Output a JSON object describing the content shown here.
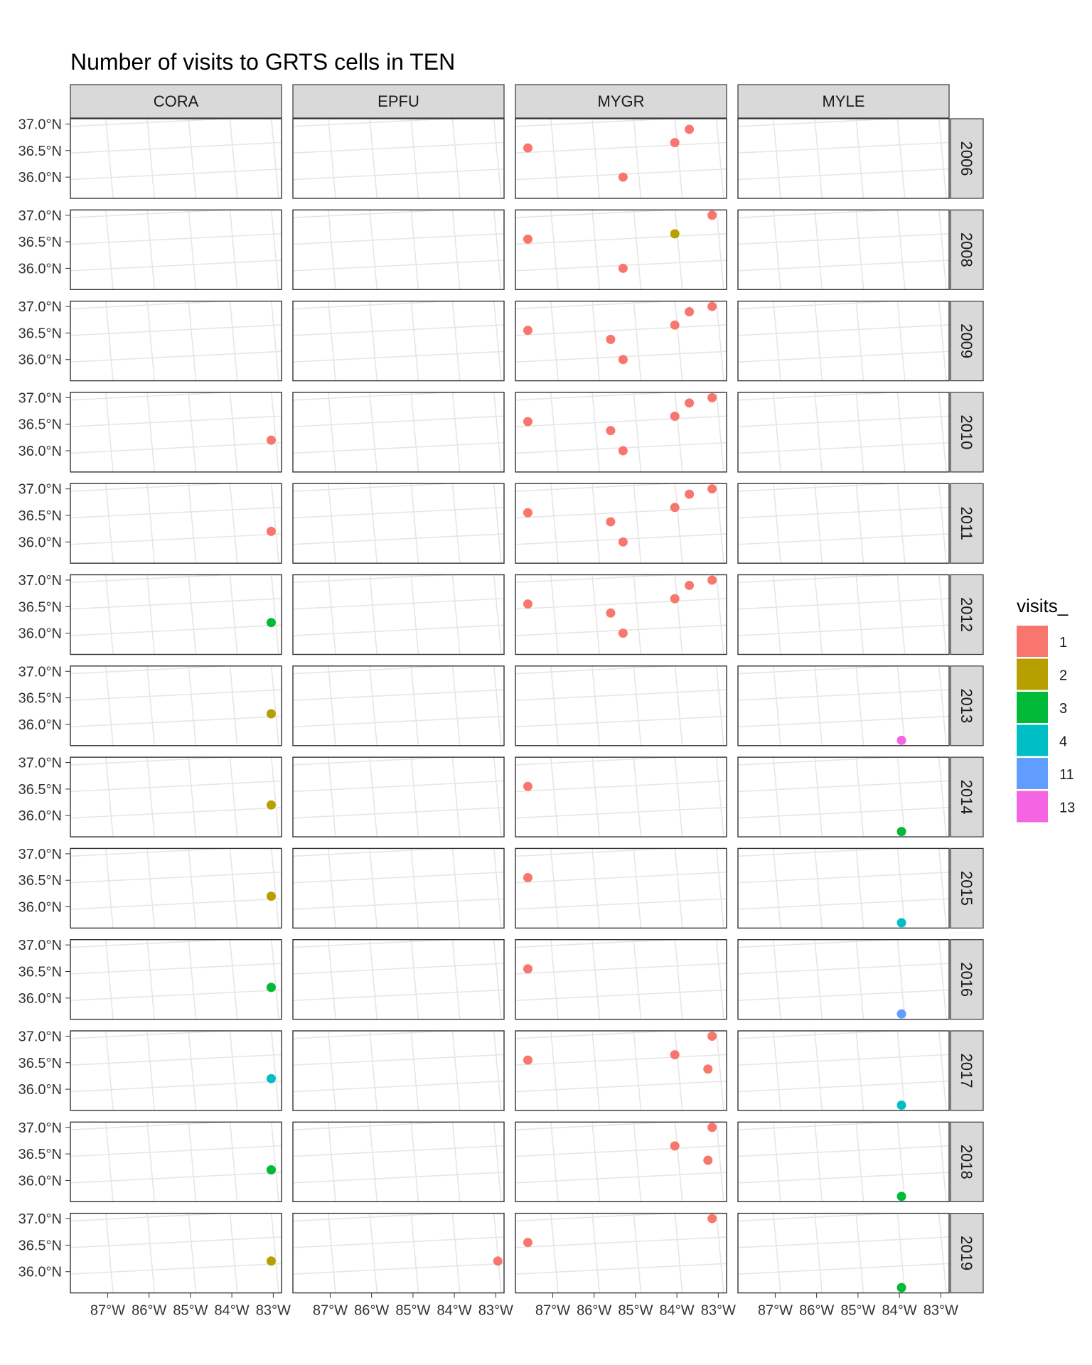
{
  "chart_data": {
    "type": "scatter",
    "subtype": "faceted map",
    "title": "Number of visits to GRTS cells in TEN",
    "facet_cols": [
      "CORA",
      "EPFU",
      "MYGR",
      "MYLE"
    ],
    "facet_rows": [
      "2006",
      "2008",
      "2009",
      "2010",
      "2011",
      "2012",
      "2013",
      "2014",
      "2015",
      "2016",
      "2017",
      "2018",
      "2019"
    ],
    "y_ticks": [
      "37.0°N",
      "36.5°N",
      "36.0°N"
    ],
    "x_ticks": [
      "87°W",
      "86°W",
      "85°W",
      "84°W",
      "83°W"
    ],
    "xlim": [
      -87.9,
      -82.8
    ],
    "ylim": [
      35.6,
      37.1
    ],
    "legend": {
      "title": "visits_",
      "position": "right",
      "items": [
        {
          "label": "1",
          "color": "#F8766D"
        },
        {
          "label": "2",
          "color": "#B79F00"
        },
        {
          "label": "3",
          "color": "#00BA38"
        },
        {
          "label": "4",
          "color": "#00BFC4"
        },
        {
          "label": "11",
          "color": "#619CFF"
        },
        {
          "label": "13",
          "color": "#F564E3"
        }
      ]
    },
    "points": {
      "CORA": {
        "2010": [
          [
            -83.05,
            36.2,
            1
          ]
        ],
        "2011": [
          [
            -83.05,
            36.2,
            1
          ]
        ],
        "2012": [
          [
            -83.05,
            36.2,
            3
          ]
        ],
        "2013": [
          [
            -83.05,
            36.2,
            2
          ]
        ],
        "2014": [
          [
            -83.05,
            36.2,
            2
          ]
        ],
        "2015": [
          [
            -83.05,
            36.2,
            2
          ]
        ],
        "2016": [
          [
            -83.05,
            36.2,
            3
          ]
        ],
        "2017": [
          [
            -83.05,
            36.2,
            4
          ]
        ],
        "2018": [
          [
            -83.05,
            36.2,
            3
          ]
        ],
        "2019": [
          [
            -83.05,
            36.2,
            2
          ]
        ]
      },
      "EPFU": {
        "2019": [
          [
            -82.95,
            36.2,
            1
          ]
        ]
      },
      "MYGR": {
        "2006": [
          [
            -87.6,
            36.55,
            1
          ],
          [
            -84.05,
            36.65,
            1
          ],
          [
            -83.7,
            36.9,
            1
          ],
          [
            -85.3,
            36.0,
            1
          ]
        ],
        "2008": [
          [
            -87.6,
            36.55,
            1
          ],
          [
            -84.05,
            36.65,
            2
          ],
          [
            -83.15,
            37.0,
            1
          ],
          [
            -85.3,
            36.0,
            1
          ]
        ],
        "2009": [
          [
            -87.6,
            36.55,
            1
          ],
          [
            -85.6,
            36.38,
            1
          ],
          [
            -85.3,
            36.0,
            1
          ],
          [
            -84.05,
            36.65,
            1
          ],
          [
            -83.7,
            36.9,
            1
          ],
          [
            -83.15,
            37.0,
            1
          ]
        ],
        "2010": [
          [
            -87.6,
            36.55,
            1
          ],
          [
            -85.6,
            36.38,
            1
          ],
          [
            -85.3,
            36.0,
            1
          ],
          [
            -84.05,
            36.65,
            1
          ],
          [
            -83.7,
            36.9,
            1
          ],
          [
            -83.15,
            37.0,
            1
          ]
        ],
        "2011": [
          [
            -87.6,
            36.55,
            1
          ],
          [
            -85.6,
            36.38,
            1
          ],
          [
            -85.3,
            36.0,
            1
          ],
          [
            -84.05,
            36.65,
            1
          ],
          [
            -83.7,
            36.9,
            1
          ],
          [
            -83.15,
            37.0,
            1
          ]
        ],
        "2012": [
          [
            -87.6,
            36.55,
            1
          ],
          [
            -85.6,
            36.38,
            1
          ],
          [
            -85.3,
            36.0,
            1
          ],
          [
            -84.05,
            36.65,
            1
          ],
          [
            -83.7,
            36.9,
            1
          ],
          [
            -83.15,
            37.0,
            1
          ]
        ],
        "2014": [
          [
            -87.6,
            36.55,
            1
          ]
        ],
        "2015": [
          [
            -87.6,
            36.55,
            1
          ]
        ],
        "2016": [
          [
            -87.6,
            36.55,
            1
          ]
        ],
        "2017": [
          [
            -87.6,
            36.55,
            1
          ],
          [
            -84.05,
            36.65,
            1
          ],
          [
            -83.25,
            36.38,
            1
          ],
          [
            -83.15,
            37.0,
            1
          ]
        ],
        "2018": [
          [
            -84.05,
            36.65,
            1
          ],
          [
            -83.25,
            36.38,
            1
          ],
          [
            -83.15,
            37.0,
            1
          ]
        ],
        "2019": [
          [
            -87.6,
            36.55,
            1
          ],
          [
            -83.15,
            37.0,
            1
          ]
        ]
      },
      "MYLE": {
        "2013": [
          [
            -83.95,
            35.7,
            13
          ]
        ],
        "2014": [
          [
            -83.95,
            35.7,
            3
          ]
        ],
        "2015": [
          [
            -83.95,
            35.7,
            4
          ]
        ],
        "2016": [
          [
            -83.95,
            35.7,
            11
          ]
        ],
        "2017": [
          [
            -83.95,
            35.7,
            4
          ]
        ],
        "2018": [
          [
            -83.95,
            35.7,
            3
          ]
        ],
        "2019": [
          [
            -83.95,
            35.7,
            3
          ]
        ]
      }
    }
  }
}
